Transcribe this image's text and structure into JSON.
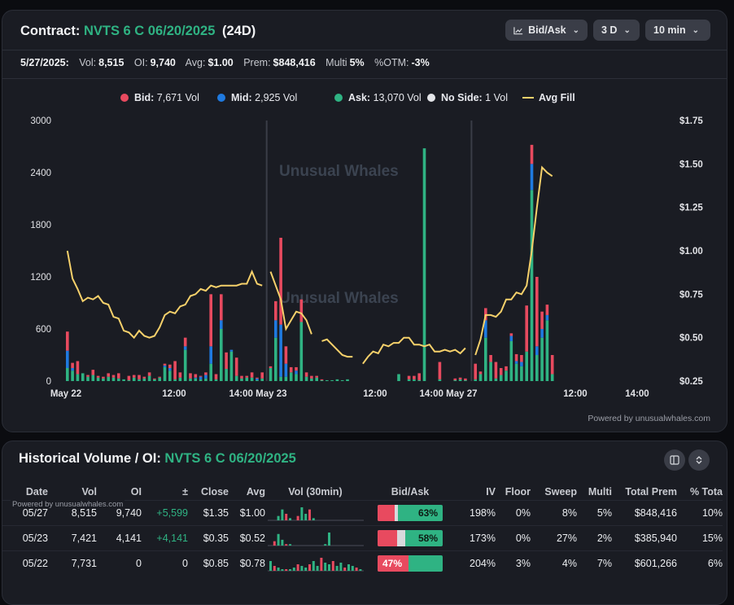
{
  "header": {
    "contract_label": "Contract:",
    "contract_name": "NVTS 6 C 06/20/2025",
    "dte": "(24D)",
    "controls": [
      {
        "label": "Bid/Ask",
        "icon": "line-chart-icon"
      },
      {
        "label": "3 D"
      },
      {
        "label": "10 min"
      }
    ]
  },
  "stats": {
    "date": "5/27/2025:",
    "vol_label": "Vol:",
    "vol": "8,515",
    "oi_label": "OI:",
    "oi": "9,740",
    "avg_label": "Avg:",
    "avg": "$1.00",
    "prem_label": "Prem:",
    "prem": "$848,416",
    "multi_label": "Multi",
    "multi": "5%",
    "otm_label": "%OTM:",
    "otm": "-3%"
  },
  "legend": [
    {
      "name": "Bid:",
      "value": "7,671 Vol",
      "color": "#e84a5f"
    },
    {
      "name": "Mid:",
      "value": "2,925 Vol",
      "color": "#1f7ae0"
    },
    {
      "name": "Ask:",
      "value": "13,070 Vol",
      "color": "#2fb383"
    },
    {
      "name": "No Side:",
      "value": "1 Vol",
      "color": "#e4e5e9"
    },
    {
      "name": "Avg Fill",
      "value": "",
      "color": "#f6d16b"
    }
  ],
  "watermark": "Unusual Whales",
  "powered_by": "Powered by unusualwhales.com",
  "chart_data": {
    "type": "bar",
    "bar_interval": "10 min",
    "x_ticks": [
      "May 22",
      "12:00",
      "14:00 May 23",
      "12:00",
      "14:00 May 27",
      "12:00",
      "14:00"
    ],
    "y_left_ticks": [
      "0",
      "600",
      "1200",
      "1800",
      "2400",
      "3000"
    ],
    "y_right_ticks": [
      "$0.25",
      "$0.50",
      "$0.75",
      "$1.00",
      "$1.25",
      "$1.50",
      "$1.75"
    ],
    "ylim_left": [
      0,
      3000
    ],
    "ylim_right": [
      0.25,
      1.75
    ],
    "series_colors": {
      "bid": "#e84a5f",
      "mid": "#1f7ae0",
      "ask": "#2fb383",
      "avg_fill": "#f6d16b"
    },
    "days": [
      {
        "label": "May 22",
        "bars": [
          {
            "ask": 150,
            "mid": 200,
            "bid": 220
          },
          {
            "ask": 120,
            "mid": 30,
            "bid": 60
          },
          {
            "ask": 80,
            "mid": 0,
            "bid": 150
          },
          {
            "ask": 90,
            "mid": 0,
            "bid": 0
          },
          {
            "ask": 50,
            "mid": 0,
            "bid": 20
          },
          {
            "ask": 70,
            "mid": 0,
            "bid": 60
          },
          {
            "ask": 40,
            "mid": 0,
            "bid": 20
          },
          {
            "ask": 30,
            "mid": 0,
            "bid": 20
          },
          {
            "ask": 50,
            "mid": 0,
            "bid": 40
          },
          {
            "ask": 40,
            "mid": 0,
            "bid": 30
          },
          {
            "ask": 30,
            "mid": 0,
            "bid": 60
          },
          {
            "ask": 20,
            "mid": 0,
            "bid": 0
          },
          {
            "ask": 10,
            "mid": 0,
            "bid": 50
          },
          {
            "ask": 40,
            "mid": 0,
            "bid": 30
          },
          {
            "ask": 20,
            "mid": 0,
            "bid": 50
          },
          {
            "ask": 30,
            "mid": 0,
            "bid": 20
          },
          {
            "ask": 60,
            "mid": 0,
            "bid": 40
          },
          {
            "ask": 20,
            "mid": 0,
            "bid": 10
          },
          {
            "ask": 40,
            "mid": 0,
            "bid": 10
          },
          {
            "ask": 160,
            "mid": 20,
            "bid": 20
          },
          {
            "ask": 120,
            "mid": 30,
            "bid": 40
          },
          {
            "ask": 20,
            "mid": 0,
            "bid": 210
          },
          {
            "ask": 40,
            "mid": 0,
            "bid": 60
          },
          {
            "ask": 360,
            "mid": 40,
            "bid": 100
          },
          {
            "ask": 30,
            "mid": 0,
            "bid": 60
          },
          {
            "ask": 30,
            "mid": 10,
            "bid": 40
          },
          {
            "ask": 20,
            "mid": 30,
            "bid": 10
          },
          {
            "ask": 30,
            "mid": 40,
            "bid": 30
          },
          {
            "ask": 200,
            "mid": 200,
            "bid": 600
          },
          {
            "ask": 20,
            "mid": 0,
            "bid": 60
          },
          {
            "ask": 600,
            "mid": 100,
            "bid": 300
          },
          {
            "ask": 140,
            "mid": 0,
            "bid": 190
          },
          {
            "ask": 340,
            "mid": 20,
            "bid": 0
          },
          {
            "ask": 60,
            "mid": 0,
            "bid": 210
          },
          {
            "ask": 30,
            "mid": 0,
            "bid": 30
          },
          {
            "ask": 40,
            "mid": 0,
            "bid": 20
          },
          {
            "ask": 40,
            "mid": 0,
            "bid": 60
          },
          {
            "ask": 10,
            "mid": 20,
            "bid": 10
          },
          {
            "ask": 30,
            "mid": 0,
            "bid": 70
          }
        ],
        "avg_fill": [
          1.0,
          0.84,
          0.78,
          0.71,
          0.73,
          0.72,
          0.74,
          0.7,
          0.69,
          0.62,
          0.61,
          0.54,
          0.53,
          0.5,
          0.54,
          0.51,
          0.5,
          0.51,
          0.56,
          0.63,
          0.65,
          0.64,
          0.68,
          0.69,
          0.74,
          0.75,
          0.78,
          0.77,
          0.8,
          0.79,
          0.8,
          0.8,
          0.8,
          0.8,
          0.81,
          0.81,
          0.88,
          0.81,
          0.8
        ]
      },
      {
        "label": "May 23",
        "bars": [
          {
            "ask": 150,
            "mid": 0,
            "bid": 20
          },
          {
            "ask": 500,
            "mid": 200,
            "bid": 220
          },
          {
            "ask": 50,
            "mid": 600,
            "bid": 1000
          },
          {
            "ask": 50,
            "mid": 150,
            "bid": 200
          },
          {
            "ask": 100,
            "mid": 0,
            "bid": 60
          },
          {
            "ask": 80,
            "mid": 40,
            "bid": 40
          },
          {
            "ask": 680,
            "mid": 0,
            "bid": 260
          },
          {
            "ask": 50,
            "mid": 0,
            "bid": 50
          },
          {
            "ask": 30,
            "mid": 0,
            "bid": 30
          },
          {
            "ask": 40,
            "mid": 0,
            "bid": 20
          },
          {
            "ask": 10,
            "mid": 0,
            "bid": 10
          },
          {
            "ask": 10,
            "mid": 0,
            "bid": 0
          },
          {
            "ask": 10,
            "mid": 0,
            "bid": 0
          },
          {
            "ask": 20,
            "mid": 0,
            "bid": 0
          },
          {
            "ask": 10,
            "mid": 0,
            "bid": 0
          },
          {
            "ask": 20,
            "mid": 0,
            "bid": 0
          },
          {
            "ask": 0,
            "mid": 0,
            "bid": 0
          },
          {
            "ask": 0,
            "mid": 0,
            "bid": 0
          },
          {
            "ask": 0,
            "mid": 0,
            "bid": 0
          },
          {
            "ask": 0,
            "mid": 0,
            "bid": 0
          },
          {
            "ask": 0,
            "mid": 0,
            "bid": 0
          },
          {
            "ask": 0,
            "mid": 0,
            "bid": 0
          },
          {
            "ask": 0,
            "mid": 0,
            "bid": 0
          },
          {
            "ask": 0,
            "mid": 0,
            "bid": 0
          },
          {
            "ask": 0,
            "mid": 0,
            "bid": 0
          },
          {
            "ask": 80,
            "mid": 0,
            "bid": 0
          },
          {
            "ask": 0,
            "mid": 0,
            "bid": 0
          },
          {
            "ask": 20,
            "mid": 0,
            "bid": 40
          },
          {
            "ask": 20,
            "mid": 0,
            "bid": 40
          },
          {
            "ask": 10,
            "mid": 0,
            "bid": 80
          },
          {
            "ask": 2680,
            "mid": 0,
            "bid": 0
          },
          {
            "ask": 0,
            "mid": 0,
            "bid": 0
          },
          {
            "ask": 0,
            "mid": 0,
            "bid": 0
          },
          {
            "ask": 20,
            "mid": 0,
            "bid": 200
          },
          {
            "ask": 0,
            "mid": 0,
            "bid": 0
          },
          {
            "ask": 0,
            "mid": 0,
            "bid": 0
          },
          {
            "ask": 10,
            "mid": 0,
            "bid": 20
          },
          {
            "ask": 20,
            "mid": 0,
            "bid": 20
          },
          {
            "ask": 10,
            "mid": 0,
            "bid": 20
          }
        ],
        "avg_fill": [
          0.88,
          0.8,
          0.72,
          0.55,
          0.6,
          0.65,
          0.64,
          0.6,
          0.52,
          null,
          0.48,
          0.49,
          0.46,
          0.43,
          0.4,
          0.39,
          0.39,
          null,
          0.35,
          0.39,
          0.42,
          0.41,
          0.46,
          0.45,
          0.47,
          0.47,
          0.5,
          0.5,
          0.46,
          0.46,
          0.45,
          0.46,
          0.42,
          0.42,
          0.43,
          0.42,
          0.43,
          0.41,
          0.44
        ]
      },
      {
        "label": "May 27",
        "bars": [
          {
            "ask": 20,
            "mid": 0,
            "bid": 180
          },
          {
            "ask": 80,
            "mid": 0,
            "bid": 30
          },
          {
            "ask": 500,
            "mid": 200,
            "bid": 140
          },
          {
            "ask": 220,
            "mid": 0,
            "bid": 80
          },
          {
            "ask": 30,
            "mid": 0,
            "bid": 190
          },
          {
            "ask": 70,
            "mid": 0,
            "bid": 80
          },
          {
            "ask": 120,
            "mid": 0,
            "bid": 50
          },
          {
            "ask": 460,
            "mid": 60,
            "bid": 30
          },
          {
            "ask": 200,
            "mid": 30,
            "bid": 80
          },
          {
            "ask": 170,
            "mid": 50,
            "bid": 80
          },
          {
            "ask": 340,
            "mid": 0,
            "bid": 530
          },
          {
            "ask": 2200,
            "mid": 300,
            "bid": 220
          },
          {
            "ask": 300,
            "mid": 100,
            "bid": 800
          },
          {
            "ask": 500,
            "mid": 100,
            "bid": 200
          },
          {
            "ask": 700,
            "mid": 60,
            "bid": 120
          },
          {
            "ask": 80,
            "mid": 0,
            "bid": 220
          }
        ],
        "avg_fill": [
          0.4,
          0.49,
          0.63,
          0.63,
          0.62,
          0.65,
          0.72,
          0.72,
          0.76,
          0.75,
          0.8,
          1.0,
          1.25,
          1.48,
          1.45,
          1.43
        ]
      }
    ]
  },
  "history": {
    "title": "Historical Volume / OI:",
    "contract": "NVTS 6 C 06/20/2025",
    "powered_by": "Powered by unusualwhales.com",
    "columns": [
      "Date",
      "Vol",
      "OI",
      "±",
      "Close",
      "Avg",
      "Vol (30min)",
      "Bid/Ask",
      "IV",
      "Floor",
      "Sweep",
      "Multi",
      "Total Prem",
      "% Tota"
    ],
    "rows": [
      {
        "date": "05/27",
        "vol": "8,515",
        "oi": "9,740",
        "chg": "+5,599",
        "close": "$1.35",
        "avg": "$1.00",
        "bid": 0.26,
        "nos": 0.05,
        "ba_label": "63%",
        "ba_side": "ask",
        "iv": "198%",
        "floor": "0%",
        "sweep": "8%",
        "multi": "5%",
        "prem": "$848,416",
        "pct": "10%",
        "mini": [
          0,
          0,
          2,
          5,
          3,
          1,
          0,
          2,
          6,
          3,
          5,
          1,
          0,
          0,
          0,
          0,
          0,
          0,
          0,
          0,
          0,
          0,
          0,
          0
        ]
      },
      {
        "date": "05/23",
        "vol": "7,421",
        "oi": "4,141",
        "chg": "+4,141",
        "close": "$0.35",
        "avg": "$0.52",
        "bid": 0.3,
        "nos": 0.12,
        "ba_label": "58%",
        "ba_side": "ask",
        "iv": "173%",
        "floor": "0%",
        "sweep": "27%",
        "multi": "2%",
        "prem": "$385,940",
        "pct": "15%",
        "mini": [
          0,
          3,
          8,
          4,
          1,
          1,
          0,
          0,
          0,
          0,
          0,
          0,
          0,
          0,
          1,
          9,
          0,
          0,
          0,
          0,
          0,
          0,
          0,
          0
        ]
      },
      {
        "date": "05/22",
        "vol": "7,731",
        "oi": "0",
        "chg": "0",
        "close": "$0.85",
        "avg": "$0.78",
        "bid": 0.47,
        "nos": 0.0,
        "ba_label": "47%",
        "ba_side": "bid",
        "iv": "204%",
        "floor": "3%",
        "sweep": "4%",
        "multi": "7%",
        "prem": "$601,266",
        "pct": "6%",
        "mini": [
          6,
          3,
          2,
          1,
          1,
          1,
          2,
          4,
          3,
          2,
          4,
          6,
          3,
          8,
          5,
          4,
          6,
          3,
          5,
          2,
          4,
          3,
          2,
          1
        ]
      }
    ]
  }
}
